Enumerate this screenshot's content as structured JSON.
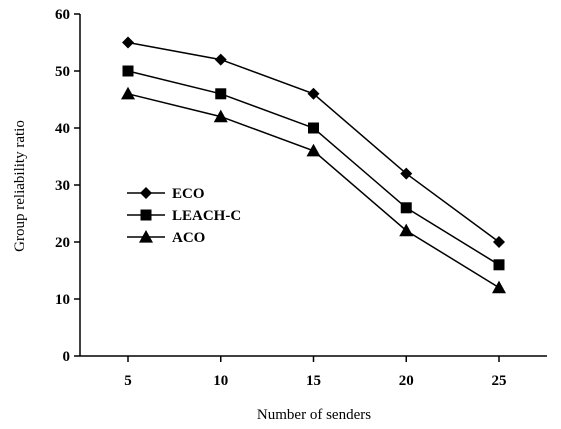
{
  "chart_data": {
    "type": "line",
    "xlabel": "Number of senders",
    "ylabel": "Group reliability ratio",
    "x": [
      5,
      10,
      15,
      20,
      25
    ],
    "xticks": [
      "5",
      "10",
      "15",
      "20",
      "25"
    ],
    "yticks": [
      "0",
      "10",
      "20",
      "30",
      "40",
      "50",
      "60"
    ],
    "ylim": [
      0,
      60
    ],
    "grid": false,
    "legend_position": "left-middle",
    "series": [
      {
        "name": "ECO",
        "marker": "diamond",
        "values": [
          55,
          52,
          46,
          32,
          20
        ]
      },
      {
        "name": "LEACH-C",
        "marker": "square",
        "values": [
          50,
          46,
          40,
          26,
          16
        ]
      },
      {
        "name": "ACO",
        "marker": "triangle",
        "values": [
          46,
          42,
          36,
          22,
          12
        ]
      }
    ]
  }
}
